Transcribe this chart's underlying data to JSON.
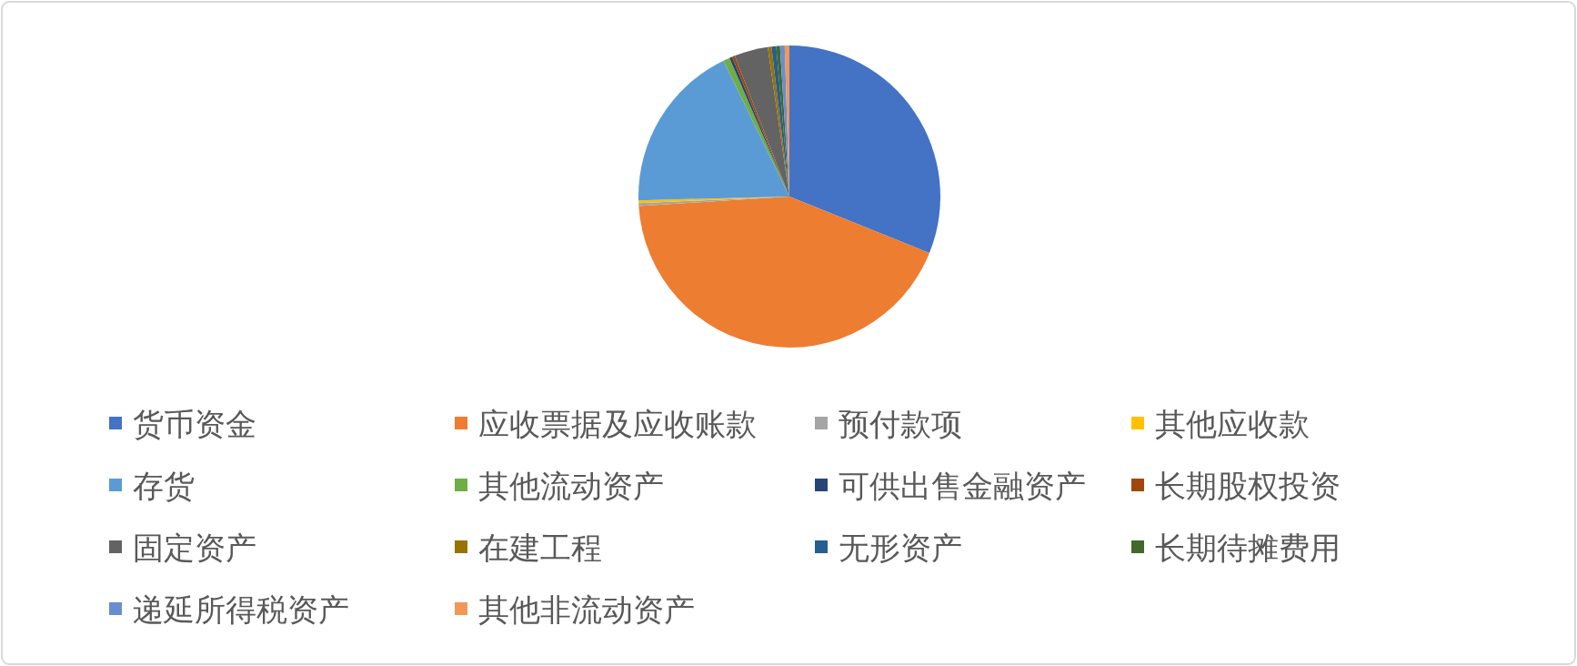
{
  "chart_data": {
    "type": "pie",
    "categories": [
      "货币资金",
      "应收票据及应收账款",
      "预付款项",
      "其他应收款",
      "存货",
      "其他流动资产",
      "可供出售金融资产",
      "长期股权投资",
      "固定资产",
      "在建工程",
      "无形资产",
      "长期待摊费用",
      "递延所得税资产",
      "其他非流动资产"
    ],
    "values": [
      31.1,
      42.9,
      0.3,
      0.3,
      18.2,
      0.7,
      0.3,
      0.3,
      3.6,
      0.4,
      0.5,
      0.4,
      0.5,
      0.5
    ],
    "colors": [
      "#4472c4",
      "#ed7d31",
      "#a5a5a5",
      "#ffc000",
      "#5b9bd5",
      "#70ad47",
      "#264478",
      "#9e480e",
      "#636363",
      "#997300",
      "#255e91",
      "#43682b",
      "#698ed0",
      "#f1975a"
    ],
    "legend": "bottom"
  }
}
